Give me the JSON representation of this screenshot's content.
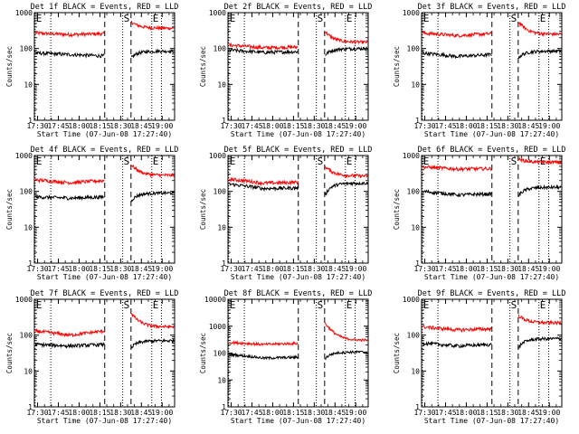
{
  "chart_data": {
    "type": "line",
    "xlabel": "Start Time (07-Jun-08 17:27:40)",
    "ylabel": "Counts/sec",
    "x_ticks": [
      "17:30",
      "17:45",
      "18:00",
      "18:15",
      "18:30",
      "18:45",
      "19:00"
    ],
    "x_tick_minutes": [
      30,
      45,
      60,
      75,
      90,
      105,
      120
    ],
    "xlim_minutes": [
      27.67,
      129
    ],
    "yscale": "log",
    "y_ticks_std": [
      "1",
      "10",
      "100",
      "1000"
    ],
    "y_ticks_wide": [
      "1",
      "10",
      "100",
      "1000",
      "10000"
    ],
    "series_colors": {
      "events": "#000000",
      "lld": "#ff0000"
    },
    "markers": [
      {
        "label": "E",
        "minute": 28.2,
        "style": "dotted",
        "labeled": true
      },
      {
        "label": "",
        "minute": 39.5,
        "style": "dotted",
        "labeled": false
      },
      {
        "label": "",
        "minute": 78.5,
        "style": "dashed",
        "labeled": false
      },
      {
        "label": "S",
        "minute": 91.5,
        "style": "dotted",
        "labeled": true
      },
      {
        "label": "",
        "minute": 97.5,
        "style": "dashed",
        "labeled": false
      },
      {
        "label": "E",
        "minute": 112.5,
        "style": "dotted",
        "labeled": true
      },
      {
        "label": "",
        "minute": 119.5,
        "style": "dotted",
        "labeled": false
      }
    ],
    "panels": [
      {
        "title": "Det 1f BLACK = Events, RED = LLD",
        "ymax": 1000,
        "y_tick_set": "std",
        "events": {
          "pre": [
            75,
            68,
            62
          ],
          "post_start": 55,
          "post_end": 85
        },
        "lld": {
          "pre": [
            270,
            245,
            260
          ],
          "post_start": 550,
          "post_end": 370
        }
      },
      {
        "title": "Det 2f BLACK = Events, RED = LLD",
        "ymax": 1000,
        "y_tick_set": "std",
        "events": {
          "pre": [
            90,
            78,
            82
          ],
          "post_start": 65,
          "post_end": 100
        },
        "lld": {
          "pre": [
            125,
            105,
            110
          ],
          "post_start": 300,
          "post_end": 150
        }
      },
      {
        "title": "Det 3f BLACK = Events, RED = LLD",
        "ymax": 1000,
        "y_tick_set": "std",
        "events": {
          "pre": [
            75,
            60,
            68
          ],
          "post_start": 55,
          "post_end": 85
        },
        "lld": {
          "pre": [
            270,
            230,
            260
          ],
          "post_start": 550,
          "post_end": 250
        }
      },
      {
        "title": "Det 4f BLACK = Events, RED = LLD",
        "ymax": 1000,
        "y_tick_set": "std",
        "events": {
          "pre": [
            70,
            65,
            70
          ],
          "post_start": 55,
          "post_end": 90
        },
        "lld": {
          "pre": [
            210,
            175,
            200
          ],
          "post_start": 550,
          "post_end": 280
        }
      },
      {
        "title": "Det 5f BLACK = Events, RED = LLD",
        "ymax": 1000,
        "y_tick_set": "std",
        "events": {
          "pre": [
            160,
            120,
            125
          ],
          "post_start": 75,
          "post_end": 170
        },
        "lld": {
          "pre": [
            220,
            170,
            180
          ],
          "post_start": 500,
          "post_end": 270
        }
      },
      {
        "title": "Det 6f BLACK = Events, RED = LLD",
        "ymax": 1000,
        "y_tick_set": "std",
        "events": {
          "pre": [
            100,
            80,
            85
          ],
          "post_start": 75,
          "post_end": 130
        },
        "lld": {
          "pre": [
            480,
            420,
            430
          ],
          "post_start": 800,
          "post_end": 650
        }
      },
      {
        "title": "Det 7f BLACK = Events, RED = LLD",
        "ymax": 1000,
        "y_tick_set": "std",
        "events": {
          "pre": [
            55,
            50,
            55
          ],
          "post_start": 45,
          "post_end": 70
        },
        "lld": {
          "pre": [
            130,
            100,
            130
          ],
          "post_start": 400,
          "post_end": 170
        }
      },
      {
        "title": "Det 8f BLACK = Events, RED = LLD",
        "ymax": 10000,
        "y_tick_set": "wide",
        "events": {
          "pre": [
            90,
            65,
            70
          ],
          "post_start": 60,
          "post_end": 110
        },
        "lld": {
          "pre": [
            250,
            210,
            230
          ],
          "post_start": 1300,
          "post_end": 300
        }
      },
      {
        "title": "Det 9f BLACK = Events, RED = LLD",
        "ymax": 1000,
        "y_tick_set": "std",
        "events": {
          "pre": [
            60,
            50,
            55
          ],
          "post_start": 45,
          "post_end": 80
        },
        "lld": {
          "pre": [
            170,
            140,
            150
          ],
          "post_start": 350,
          "post_end": 220
        }
      }
    ]
  }
}
